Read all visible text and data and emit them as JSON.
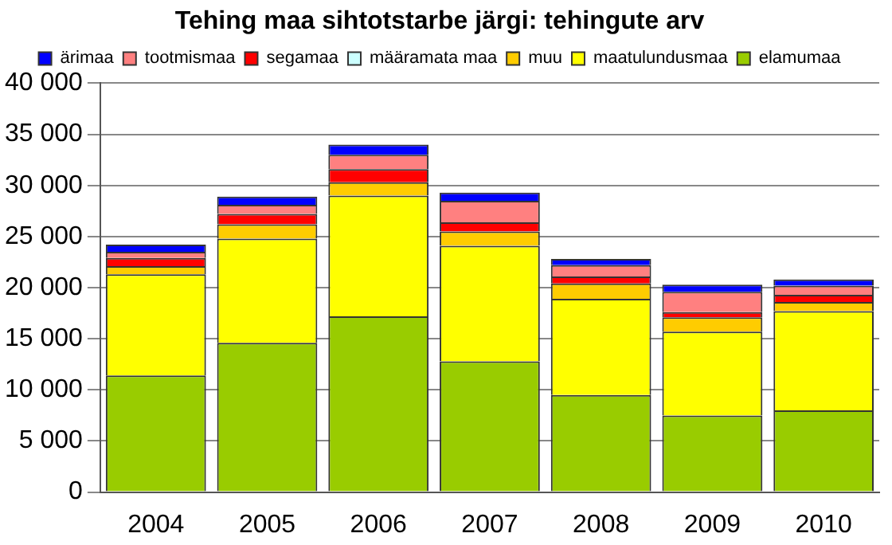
{
  "chart_data": {
    "type": "bar",
    "title": "Tehing maa sihtotstarbe järgi: tehingute arv",
    "stacked": true,
    "legend": "top",
    "grid": "y",
    "categories": [
      "2004",
      "2005",
      "2006",
      "2007",
      "2008",
      "2009",
      "2010"
    ],
    "series": [
      {
        "name": "elamumaa",
        "color": "#99cc00",
        "values": [
          11400,
          14600,
          17200,
          12800,
          9500,
          7500,
          8000
        ]
      },
      {
        "name": "maatulundusmaa",
        "color": "#ffff00",
        "values": [
          9900,
          10200,
          11800,
          11300,
          9400,
          8200,
          9700
        ]
      },
      {
        "name": "muu",
        "color": "#ffcc00",
        "values": [
          800,
          1400,
          1300,
          1400,
          1500,
          1400,
          900
        ]
      },
      {
        "name": "määramata maa",
        "color": "#ccffff",
        "values": [
          null,
          null,
          null,
          null,
          null,
          null,
          null
        ]
      },
      {
        "name": "segamaa",
        "color": "#ff0000",
        "values": [
          800,
          1000,
          1300,
          900,
          700,
          500,
          700
        ]
      },
      {
        "name": "tootmismaa",
        "color": "#ff8080",
        "values": [
          600,
          900,
          1400,
          2100,
          1100,
          2000,
          900
        ]
      },
      {
        "name": "ärimaa",
        "color": "#0000ff",
        "values": [
          700,
          800,
          1000,
          800,
          600,
          700,
          600
        ]
      }
    ],
    "ylim": [
      0,
      40000
    ],
    "yticks": [
      {
        "value": 0,
        "label": "0"
      },
      {
        "value": 5000,
        "label": "5 000"
      },
      {
        "value": 10000,
        "label": "10 000"
      },
      {
        "value": 15000,
        "label": "15 000"
      },
      {
        "value": 20000,
        "label": "20 000"
      },
      {
        "value": 25000,
        "label": "25 000"
      },
      {
        "value": 30000,
        "label": "30 000"
      },
      {
        "value": 35000,
        "label": "35 000"
      },
      {
        "value": 40000,
        "label": "40 000"
      }
    ]
  }
}
